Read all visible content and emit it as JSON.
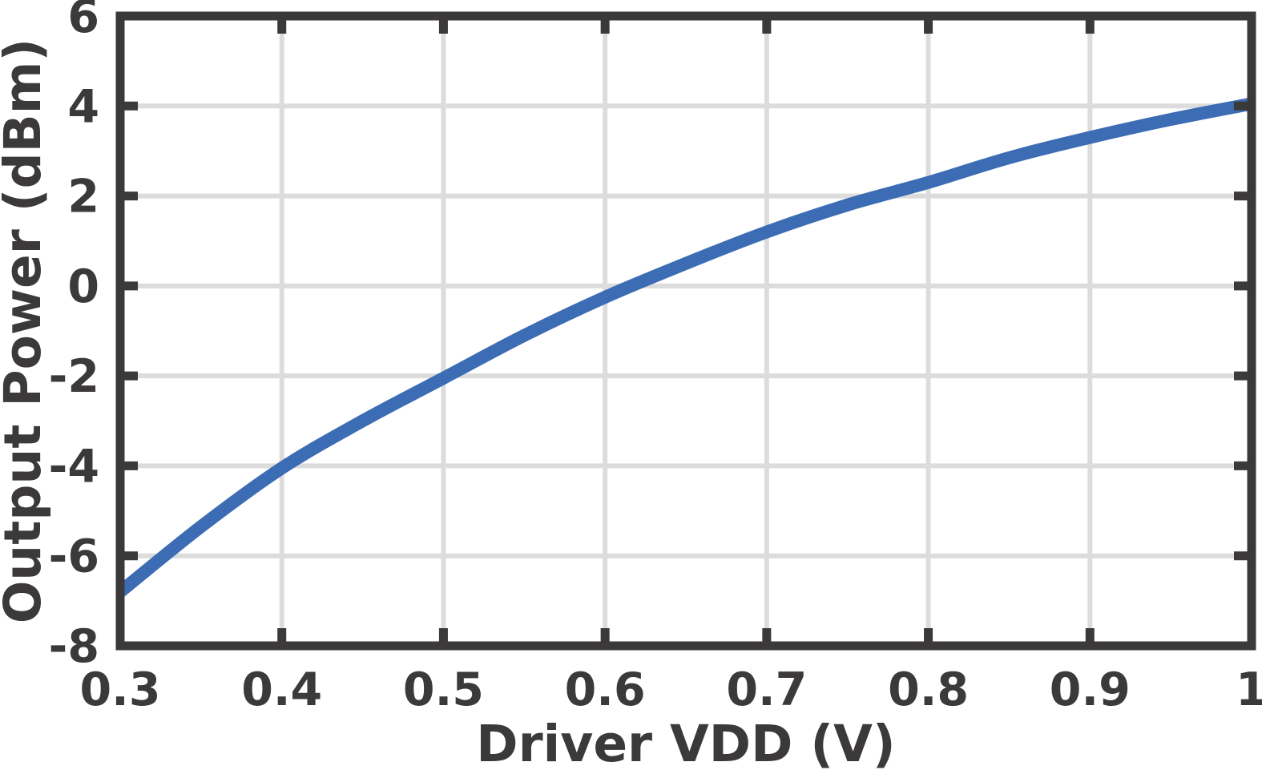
{
  "chart_data": {
    "type": "line",
    "title": "",
    "xlabel": "Driver VDD (V)",
    "ylabel": "Output Power (dBm)",
    "xlim": [
      0.3,
      1
    ],
    "ylim": [
      -8,
      6
    ],
    "xticks": [
      0.3,
      0.4,
      0.5,
      0.6,
      0.7,
      0.8,
      0.9,
      1
    ],
    "xtick_labels": [
      "0.3",
      "0.4",
      "0.5",
      "0.6",
      "0.7",
      "0.8",
      "0.9",
      "1"
    ],
    "yticks": [
      -8,
      -6,
      -4,
      -2,
      0,
      2,
      4,
      6
    ],
    "ytick_labels": [
      "-8",
      "-6",
      "-4",
      "-2",
      "0",
      "2",
      "4",
      "6"
    ],
    "grid": true,
    "legend_position": "none",
    "series": [
      {
        "name": "Output Power",
        "color": "#3b6cb4",
        "x": [
          0.3,
          0.35,
          0.4,
          0.45,
          0.5,
          0.55,
          0.6,
          0.65,
          0.7,
          0.75,
          0.8,
          0.85,
          0.9,
          0.95,
          1.0
        ],
        "y": [
          -6.8,
          -5.35,
          -4.05,
          -3.0,
          -2.05,
          -1.1,
          -0.25,
          0.5,
          1.2,
          1.8,
          2.3,
          2.85,
          3.3,
          3.7,
          4.05
        ]
      }
    ],
    "colors": {
      "axis": "#3b3939",
      "grid": "#dcdcdc",
      "background": "#ffffff"
    }
  }
}
